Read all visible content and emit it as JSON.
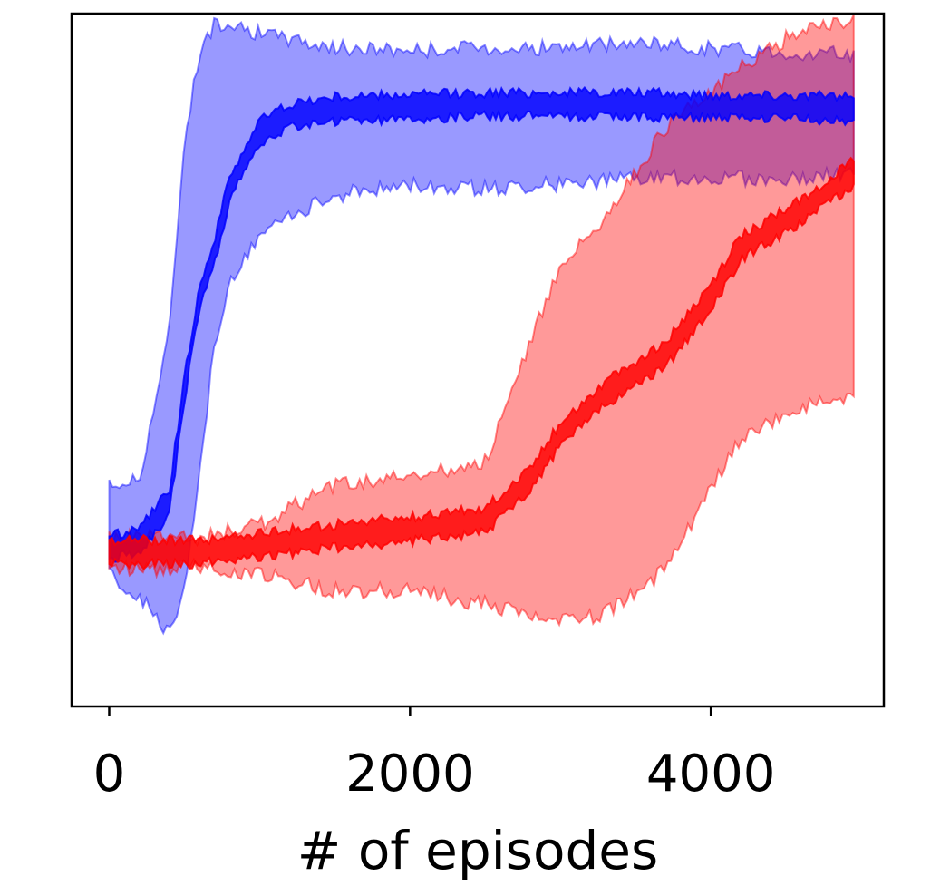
{
  "chart_data": {
    "type": "line",
    "title": "",
    "xlabel": "# of episodes",
    "ylabel": "",
    "xlim": [
      -250,
      5150
    ],
    "ylim": [
      -0.7,
      2.35
    ],
    "x_ticks": [
      0,
      2000,
      4000
    ],
    "x_tick_labels": [
      "0",
      "2000",
      "4000"
    ],
    "y_ticks_shown": false,
    "grid": false,
    "legend": "none",
    "series": [
      {
        "color": "#0000ff",
        "band_color": "#0000ff",
        "points": [
          {
            "x": 0,
            "y": 0.0,
            "lo": -0.12,
            "hi": 0.27
          },
          {
            "x": 200,
            "y": 0.03,
            "lo": -0.22,
            "hi": 0.3
          },
          {
            "x": 400,
            "y": 0.2,
            "lo": -0.38,
            "hi": 0.95
          },
          {
            "x": 500,
            "y": 0.7,
            "lo": -0.2,
            "hi": 1.8
          },
          {
            "x": 600,
            "y": 1.1,
            "lo": 0.3,
            "hi": 2.18
          },
          {
            "x": 700,
            "y": 1.3,
            "lo": 0.9,
            "hi": 2.3
          },
          {
            "x": 800,
            "y": 1.58,
            "lo": 1.15,
            "hi": 2.32
          },
          {
            "x": 1000,
            "y": 1.83,
            "lo": 1.38,
            "hi": 2.26
          },
          {
            "x": 1200,
            "y": 1.9,
            "lo": 1.45,
            "hi": 2.24
          },
          {
            "x": 1500,
            "y": 1.93,
            "lo": 1.55,
            "hi": 2.2
          },
          {
            "x": 2000,
            "y": 1.94,
            "lo": 1.6,
            "hi": 2.19
          },
          {
            "x": 2500,
            "y": 1.95,
            "lo": 1.58,
            "hi": 2.2
          },
          {
            "x": 3000,
            "y": 1.95,
            "lo": 1.6,
            "hi": 2.2
          },
          {
            "x": 3500,
            "y": 1.95,
            "lo": 1.62,
            "hi": 2.22
          },
          {
            "x": 4000,
            "y": 1.94,
            "lo": 1.63,
            "hi": 2.2
          },
          {
            "x": 4500,
            "y": 1.94,
            "lo": 1.62,
            "hi": 2.18
          },
          {
            "x": 4950,
            "y": 1.93,
            "lo": 1.65,
            "hi": 2.17
          }
        ]
      },
      {
        "color": "#ff0000",
        "band_color": "#ff0000",
        "points": [
          {
            "x": 0,
            "y": -0.02,
            "lo": -0.08,
            "hi": 0.04
          },
          {
            "x": 300,
            "y": -0.02,
            "lo": -0.1,
            "hi": 0.06
          },
          {
            "x": 600,
            "y": -0.02,
            "lo": -0.08,
            "hi": 0.04
          },
          {
            "x": 1000,
            "y": 0.01,
            "lo": -0.12,
            "hi": 0.1
          },
          {
            "x": 1500,
            "y": 0.05,
            "lo": -0.19,
            "hi": 0.28
          },
          {
            "x": 2000,
            "y": 0.08,
            "lo": -0.19,
            "hi": 0.31
          },
          {
            "x": 2500,
            "y": 0.12,
            "lo": -0.25,
            "hi": 0.38
          },
          {
            "x": 2800,
            "y": 0.3,
            "lo": -0.3,
            "hi": 0.9
          },
          {
            "x": 3000,
            "y": 0.5,
            "lo": -0.33,
            "hi": 1.25
          },
          {
            "x": 3300,
            "y": 0.68,
            "lo": -0.29,
            "hi": 1.45
          },
          {
            "x": 3700,
            "y": 0.85,
            "lo": -0.1,
            "hi": 1.85
          },
          {
            "x": 4000,
            "y": 1.1,
            "lo": 0.25,
            "hi": 2.0
          },
          {
            "x": 4200,
            "y": 1.32,
            "lo": 0.48,
            "hi": 2.12
          },
          {
            "x": 4600,
            "y": 1.48,
            "lo": 0.62,
            "hi": 2.28
          },
          {
            "x": 4950,
            "y": 1.65,
            "lo": 0.65,
            "hi": 2.32
          }
        ]
      }
    ]
  }
}
